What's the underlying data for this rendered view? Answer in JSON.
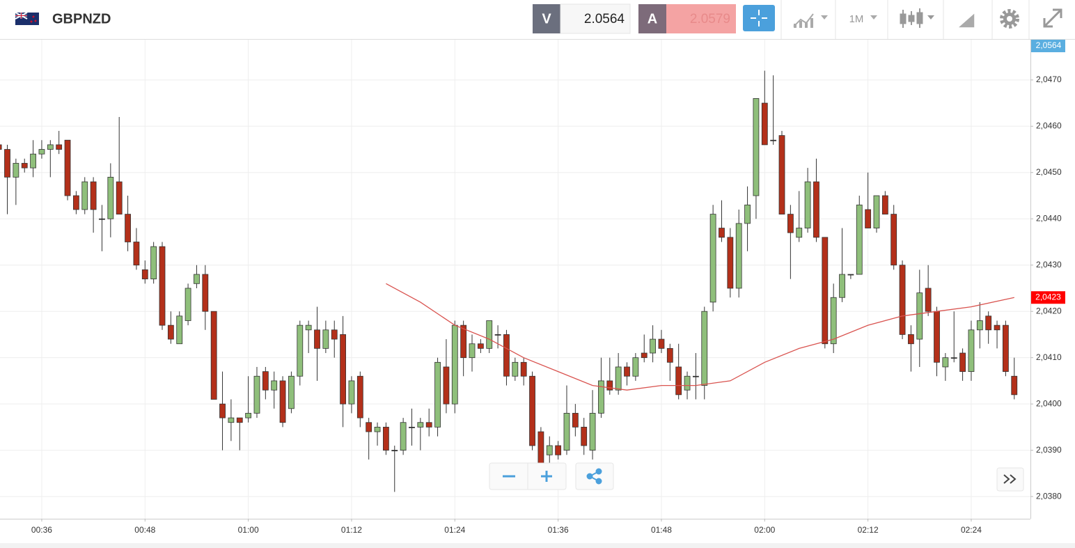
{
  "toolbar": {
    "symbol": "GBPNZD",
    "bid_label": "V",
    "bid": "2.0564",
    "ask_label": "A",
    "ask": "2.0579",
    "timeframe": "1M",
    "bid_marker": "2,0564"
  },
  "chart_data": {
    "type": "candlestick",
    "x": [
      31,
      32,
      33,
      34,
      35,
      36,
      37,
      38,
      39,
      40,
      41,
      42,
      43,
      44,
      45,
      46,
      47,
      48,
      49,
      50,
      51,
      52,
      53,
      54,
      55,
      56,
      57,
      58,
      59,
      60,
      61,
      62,
      63,
      64,
      65,
      66,
      67,
      68,
      69,
      70,
      71,
      72,
      73,
      74,
      75,
      76,
      77,
      78,
      79,
      80,
      81,
      82,
      83,
      84,
      85,
      86,
      87,
      88,
      89,
      90,
      91,
      92,
      93,
      94,
      95,
      96,
      97,
      98,
      99,
      100,
      101,
      102,
      103,
      104,
      105,
      106,
      107,
      108,
      109,
      110,
      111,
      112,
      113,
      114,
      115,
      116,
      117,
      118,
      119,
      120,
      121,
      122,
      123,
      124,
      125,
      126,
      127,
      128,
      129,
      130,
      131,
      132,
      133,
      134,
      135,
      136,
      137,
      138,
      139,
      140,
      141,
      142,
      143,
      144,
      145,
      146,
      147,
      148,
      149
    ],
    "open": [
      2.0456,
      2.0455,
      2.0449,
      2.0452,
      2.0451,
      2.0454,
      2.0455,
      2.0456,
      2.0457,
      2.0445,
      2.0442,
      2.0448,
      2.044,
      2.044,
      2.0448,
      2.0441,
      2.0435,
      2.0429,
      2.0427,
      2.0434,
      2.0417,
      2.0413,
      2.0418,
      2.0426,
      2.0428,
      2.042,
      2.04,
      2.0396,
      2.0397,
      2.0397,
      2.0398,
      2.0407,
      2.0403,
      2.0405,
      2.0399,
      2.0406,
      2.0416,
      2.0416,
      2.0412,
      2.0416,
      2.0415,
      2.04,
      2.0406,
      2.0396,
      2.0394,
      2.0395,
      2.039,
      2.039,
      2.0395,
      2.0395,
      2.0396,
      2.0395,
      2.0408,
      2.04,
      2.0417,
      2.041,
      2.0413,
      2.0412,
      2.0415,
      2.0415,
      2.0406,
      2.0409,
      2.0406,
      2.0394,
      2.0389,
      2.0391,
      2.039,
      2.0398,
      2.0395,
      2.039,
      2.0398,
      2.0405,
      2.0403,
      2.0408,
      2.0406,
      2.0411,
      2.0411,
      2.0414,
      2.0412,
      2.0408,
      2.0403,
      2.0406,
      2.0404,
      2.0422,
      2.0438,
      2.0436,
      2.0425,
      2.0439,
      2.0445,
      2.0465,
      2.0457,
      2.0458,
      2.0441,
      2.0436,
      2.0438,
      2.0448,
      2.0436,
      2.0413,
      2.0423,
      2.0428,
      2.0428,
      2.0442,
      2.0438,
      2.0445,
      2.0441,
      2.043,
      2.0415,
      2.0414,
      2.0425,
      2.042,
      2.0408,
      2.041,
      2.0411,
      2.0407,
      2.0416,
      2.0419,
      2.0417,
      2.0417,
      2.0406
    ],
    "high": [
      2.0457,
      2.0456,
      2.0453,
      2.0453,
      2.0457,
      2.0457,
      2.0457,
      2.0459,
      2.0457,
      2.0446,
      2.0449,
      2.0449,
      2.0443,
      2.0452,
      2.0462,
      2.0445,
      2.0438,
      2.0431,
      2.0435,
      2.0435,
      2.042,
      2.042,
      2.0426,
      2.043,
      2.043,
      2.042,
      2.0407,
      2.0401,
      2.0397,
      2.0406,
      2.0408,
      2.0408,
      2.0407,
      2.0406,
      2.0407,
      2.0418,
      2.0418,
      2.0421,
      2.0418,
      2.0418,
      2.0419,
      2.0406,
      2.0407,
      2.0397,
      2.0396,
      2.0396,
      2.0391,
      2.0397,
      2.0399,
      2.0397,
      2.0399,
      2.041,
      2.0414,
      2.0418,
      2.0418,
      2.0415,
      2.0414,
      2.0418,
      2.0417,
      2.0416,
      2.041,
      2.041,
      2.0407,
      2.0395,
      2.0393,
      2.0392,
      2.0404,
      2.04,
      2.0397,
      2.0403,
      2.041,
      2.041,
      2.0411,
      2.0409,
      2.0411,
      2.0415,
      2.0417,
      2.0416,
      2.0413,
      2.0413,
      2.0407,
      2.0411,
      2.0421,
      2.0443,
      2.0444,
      2.0438,
      2.0442,
      2.0447,
      2.0466,
      2.0472,
      2.0471,
      2.0459,
      2.0443,
      2.0446,
      2.0451,
      2.0453,
      2.0436,
      2.0426,
      2.0438,
      2.0428,
      2.0445,
      2.045,
      2.0445,
      2.0446,
      2.0443,
      2.0431,
      2.0417,
      2.0429,
      2.043,
      2.0421,
      2.0411,
      2.042,
      2.0412,
      2.0418,
      2.0422,
      2.042,
      2.0418,
      2.0418,
      2.041
    ],
    "low": [
      2.0455,
      2.0441,
      2.0443,
      2.045,
      2.0449,
      2.0453,
      2.0449,
      2.0454,
      2.0444,
      2.0441,
      2.0441,
      2.0437,
      2.0433,
      2.0436,
      2.0441,
      2.0433,
      2.0429,
      2.0426,
      2.0426,
      2.0416,
      2.0413,
      2.0413,
      2.0417,
      2.0425,
      2.0416,
      2.0401,
      2.039,
      2.0392,
      2.039,
      2.0396,
      2.0397,
      2.0401,
      2.0399,
      2.0395,
      2.0398,
      2.0404,
      2.0411,
      2.0405,
      2.0411,
      2.041,
      2.0395,
      2.0398,
      2.0395,
      2.0388,
      2.0391,
      2.0389,
      2.0381,
      2.0389,
      2.0391,
      2.039,
      2.0393,
      2.0393,
      2.0398,
      2.0398,
      2.0406,
      2.0407,
      2.0411,
      2.0411,
      2.0412,
      2.0404,
      2.0405,
      2.0404,
      2.039,
      2.0385,
      2.0387,
      2.0388,
      2.0389,
      2.0393,
      2.0389,
      2.0388,
      2.0397,
      2.0402,
      2.0402,
      2.0404,
      2.0405,
      2.0409,
      2.0409,
      2.0411,
      2.0405,
      2.0401,
      2.0401,
      2.0401,
      2.0401,
      2.042,
      2.0435,
      2.0423,
      2.0423,
      2.0433,
      2.044,
      2.0456,
      2.0456,
      2.0441,
      2.0427,
      2.0435,
      2.0437,
      2.0435,
      2.0412,
      2.0411,
      2.0422,
      2.0427,
      2.0428,
      2.0438,
      2.0437,
      2.0441,
      2.0429,
      2.0414,
      2.0407,
      2.0408,
      2.0419,
      2.0406,
      2.0405,
      2.0409,
      2.0405,
      2.0405,
      2.0412,
      2.0413,
      2.0412,
      2.0406,
      2.0401
    ],
    "close": [
      2.0455,
      2.0449,
      2.0452,
      2.0451,
      2.0454,
      2.0455,
      2.0456,
      2.0455,
      2.0445,
      2.0442,
      2.0448,
      2.0442,
      2.044,
      2.0449,
      2.0441,
      2.0435,
      2.043,
      2.0427,
      2.0434,
      2.0417,
      2.0414,
      2.0419,
      2.0425,
      2.0428,
      2.042,
      2.0401,
      2.0397,
      2.0397,
      2.0396,
      2.0398,
      2.0406,
      2.0403,
      2.0405,
      2.0396,
      2.0406,
      2.0417,
      2.0417,
      2.0412,
      2.0416,
      2.0414,
      2.04,
      2.0405,
      2.0397,
      2.0394,
      2.0395,
      2.039,
      2.039,
      2.0396,
      2.0395,
      2.0396,
      2.0395,
      2.0409,
      2.04,
      2.0417,
      2.041,
      2.0413,
      2.0412,
      2.0418,
      2.0415,
      2.0406,
      2.0409,
      2.0406,
      2.0391,
      2.0387,
      2.0391,
      2.0389,
      2.0398,
      2.0395,
      2.0391,
      2.0398,
      2.0405,
      2.0403,
      2.0408,
      2.0406,
      2.041,
      2.041,
      2.0414,
      2.0412,
      2.0409,
      2.0402,
      2.0406,
      2.0406,
      2.042,
      2.0441,
      2.0436,
      2.0425,
      2.0439,
      2.0443,
      2.0466,
      2.0456,
      2.0457,
      2.0441,
      2.0437,
      2.0438,
      2.0448,
      2.0436,
      2.0413,
      2.0423,
      2.0428,
      2.0428,
      2.0443,
      2.0438,
      2.0445,
      2.0441,
      2.043,
      2.0415,
      2.0413,
      2.0424,
      2.042,
      2.0409,
      2.041,
      2.041,
      2.0407,
      2.0416,
      2.0418,
      2.0416,
      2.0416,
      2.0407,
      2.0402
    ],
    "up_color": "#8fbf7b",
    "down_color": "#b3301a",
    "outline_color": "#333333",
    "moving_average": {
      "x": [
        76,
        80,
        84,
        88,
        92,
        96,
        100,
        104,
        108,
        112,
        116,
        120,
        124,
        128,
        132,
        136,
        140,
        144,
        149
      ],
      "values": [
        2.0426,
        2.0422,
        2.0417,
        2.0414,
        2.041,
        2.0407,
        2.0404,
        2.0403,
        2.0404,
        2.0404,
        2.0405,
        2.0409,
        2.0412,
        2.0414,
        2.0417,
        2.0419,
        2.042,
        2.0421,
        2.0423
      ],
      "color": "#d9534f"
    },
    "price_marker": {
      "value": 2.0423,
      "label": "2,0423",
      "color": "#ff0000"
    },
    "xlim": [
      31.15,
      150.88
    ],
    "ylim": [
      2.03752,
      2.04787
    ],
    "xticks": [
      {
        "value": 36,
        "label": "00:36"
      },
      {
        "value": 48,
        "label": "00:48"
      },
      {
        "value": 60,
        "label": "01:00"
      },
      {
        "value": 72,
        "label": "01:12"
      },
      {
        "value": 84,
        "label": "01:24"
      },
      {
        "value": 96,
        "label": "01:36"
      },
      {
        "value": 108,
        "label": "01:48"
      },
      {
        "value": 120,
        "label": "02:00"
      },
      {
        "value": 132,
        "label": "02:12"
      },
      {
        "value": 144,
        "label": "02:24"
      }
    ],
    "yticks": [
      {
        "value": 2.038,
        "label": "2,0380"
      },
      {
        "value": 2.039,
        "label": "2,0390"
      },
      {
        "value": 2.04,
        "label": "2,0400"
      },
      {
        "value": 2.041,
        "label": "2,0410"
      },
      {
        "value": 2.042,
        "label": "2,0420"
      },
      {
        "value": 2.043,
        "label": "2,0430"
      },
      {
        "value": 2.044,
        "label": "2,0440"
      },
      {
        "value": 2.045,
        "label": "2,0450"
      },
      {
        "value": 2.046,
        "label": "2,0460"
      },
      {
        "value": 2.047,
        "label": "2,0470"
      }
    ],
    "grid": true
  }
}
